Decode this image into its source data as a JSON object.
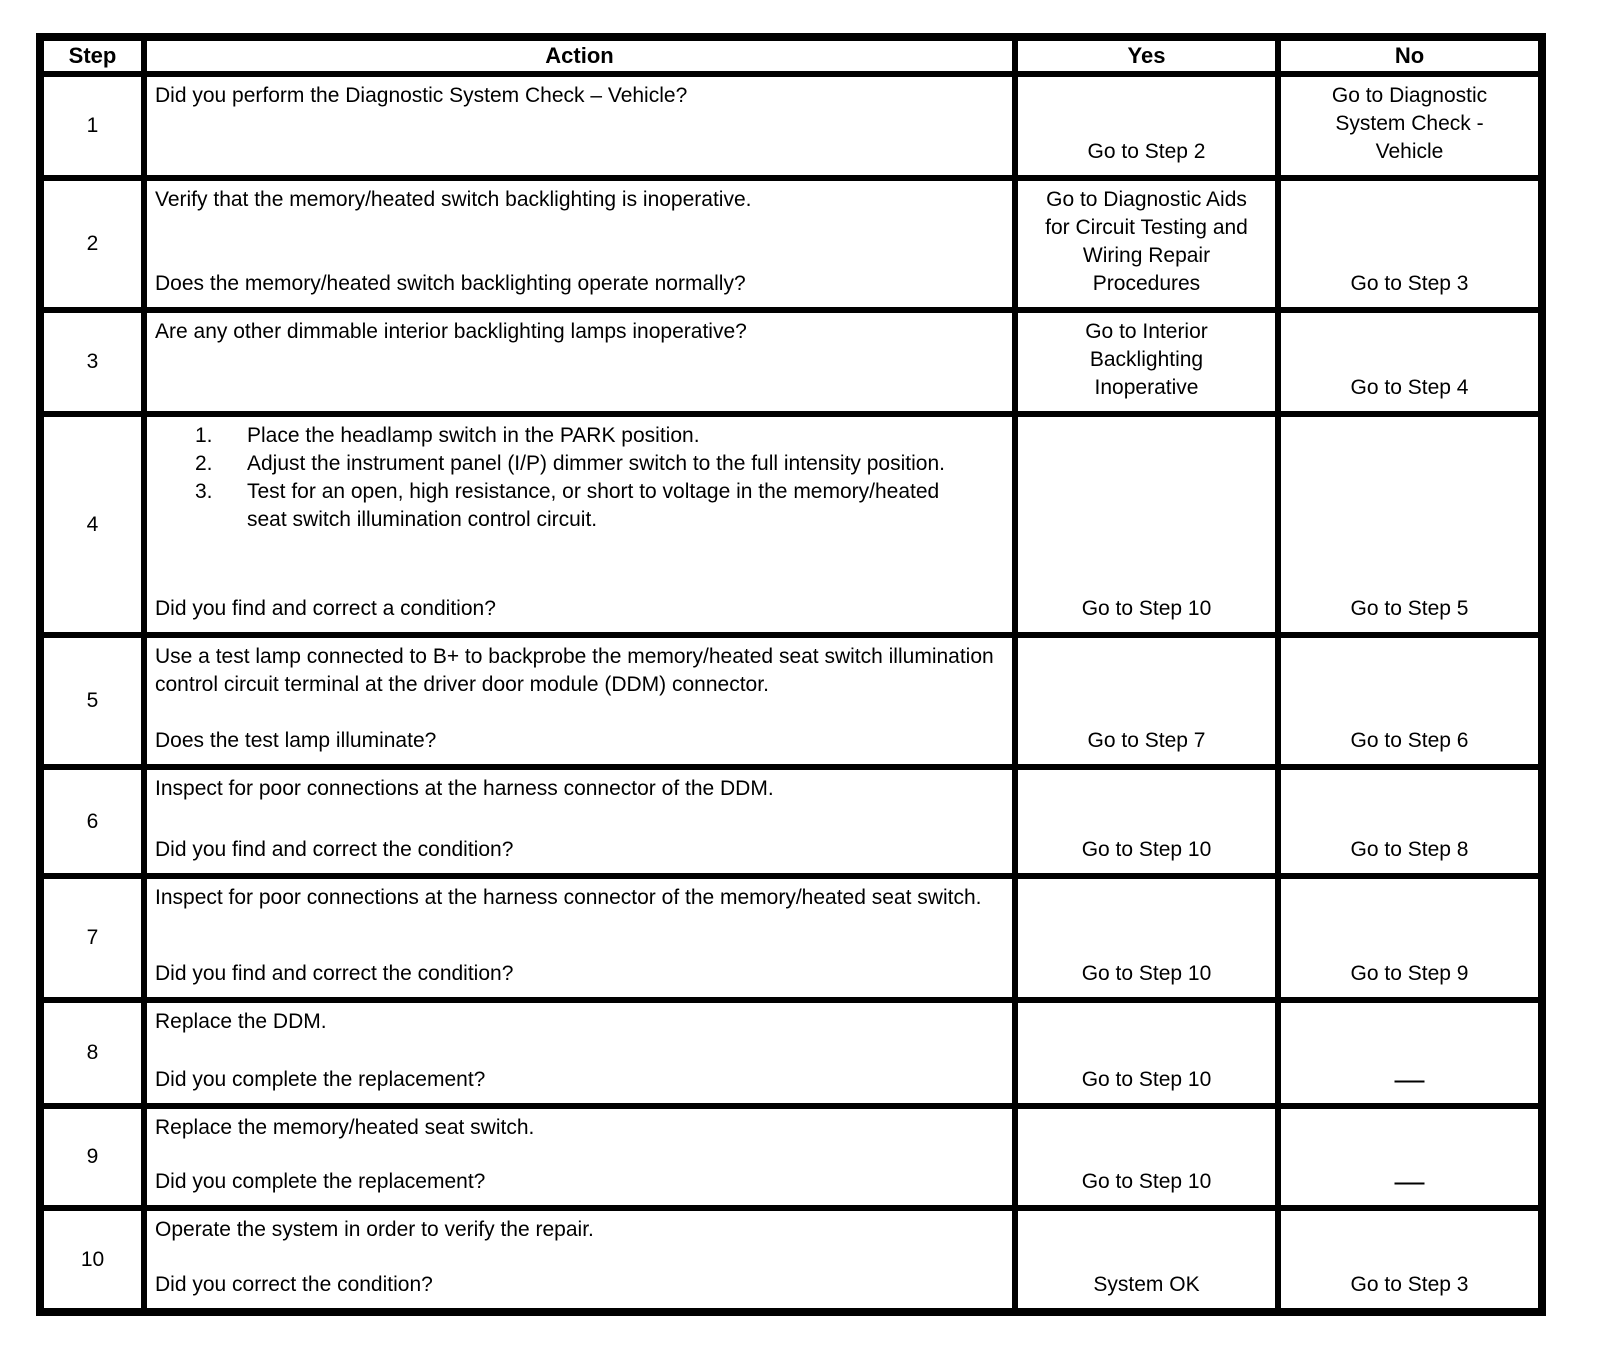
{
  "table": {
    "headers": {
      "step": "Step",
      "action": "Action",
      "yes": "Yes",
      "no": "No"
    },
    "rows": [
      {
        "step": "1",
        "action": {
          "top": "Did you perform the Diagnostic System Check – Vehicle?",
          "question": ""
        },
        "yes": "Go to Step 2",
        "no": "Go to Diagnostic\nSystem Check -\nVehicle"
      },
      {
        "step": "2",
        "action": {
          "top": "Verify that the memory/heated switch backlighting is inoperative.",
          "question": "Does the memory/heated switch backlighting operate normally?"
        },
        "yes": "Go to Diagnostic Aids\nfor Circuit Testing and\nWiring Repair\nProcedures",
        "no": "Go to Step 3"
      },
      {
        "step": "3",
        "action": {
          "top": "Are any other dimmable interior backlighting lamps inoperative?",
          "question": ""
        },
        "yes": "Go to Interior\nBacklighting\nInoperative",
        "no": "Go to Step 4"
      },
      {
        "step": "4",
        "action": {
          "list": [
            {
              "num": "1.",
              "text": "Place the headlamp switch in the PARK position."
            },
            {
              "num": "2.",
              "text": "Adjust the instrument panel (I/P) dimmer switch to the full intensity position."
            },
            {
              "num": "3.",
              "text": "Test for an open, high resistance, or short to voltage in the memory/heated seat switch illumination control circuit."
            }
          ],
          "question": "Did you find and correct a condition?"
        },
        "yes": "Go to Step 10",
        "no": "Go to Step 5"
      },
      {
        "step": "5",
        "action": {
          "top": "Use a test lamp connected to B+ to backprobe the memory/heated seat switch illumination control circuit terminal at the driver door module (DDM) connector.",
          "question": "Does the test lamp illuminate?"
        },
        "yes": "Go to Step 7",
        "no": "Go to Step 6"
      },
      {
        "step": "6",
        "action": {
          "top": "Inspect for poor connections at the harness connector of the DDM.",
          "question": "Did you find and correct the condition?"
        },
        "yes": "Go to Step 10",
        "no": "Go to Step 8"
      },
      {
        "step": "7",
        "action": {
          "top": "Inspect for poor connections at the harness connector of the memory/heated seat switch.",
          "question": "Did you find and correct the condition?"
        },
        "yes": "Go to Step 10",
        "no": "Go to Step 9"
      },
      {
        "step": "8",
        "action": {
          "top": "Replace the DDM.",
          "question": "Did you complete the replacement?"
        },
        "yes": "Go to Step 10",
        "no": "—"
      },
      {
        "step": "9",
        "action": {
          "top": "Replace the memory/heated seat switch.",
          "question": "Did you complete the replacement?"
        },
        "yes": "Go to Step 10",
        "no": "—"
      },
      {
        "step": "10",
        "action": {
          "top": "Operate the system in order to verify the repair.",
          "question": "Did you correct the condition?"
        },
        "yes": "System OK",
        "no": "Go to Step 3"
      }
    ]
  }
}
